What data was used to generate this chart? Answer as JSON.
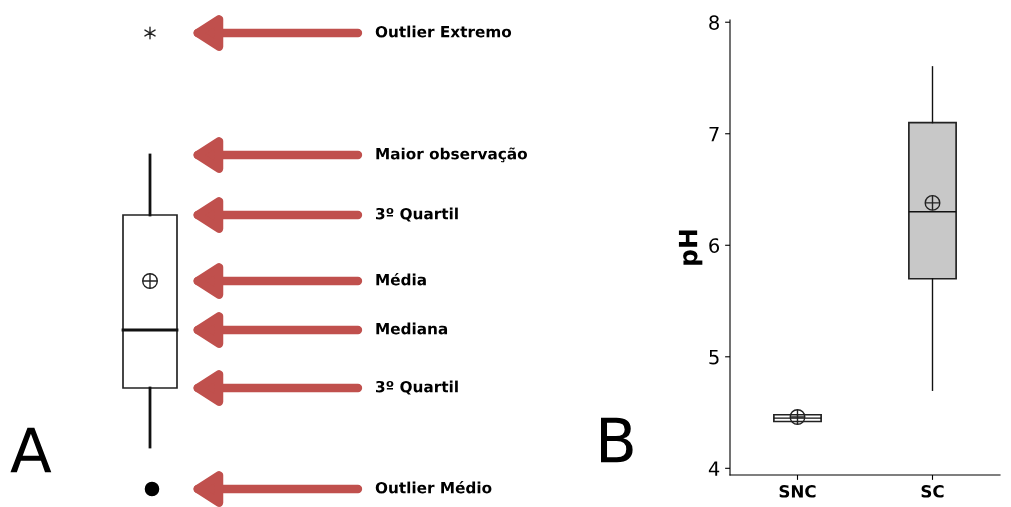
{
  "chart_data": [
    {
      "type": "other",
      "annotations": [
        "Outlier Extremo",
        "Maior observação",
        "3º Quartil",
        "Média",
        "Mediana",
        "3º Quartil",
        "Outlier Médio",
        "A"
      ]
    },
    {
      "type": "box",
      "categories": [
        "SNC",
        "SC"
      ],
      "ylabel": "pH",
      "boxes": [
        {
          "low": 4.42,
          "q1": 4.42,
          "median": 4.45,
          "q3": 4.48,
          "high": 4.48,
          "mean": 4.46
        },
        {
          "low": 4.7,
          "q1": 5.7,
          "median": 6.3,
          "q3": 7.1,
          "high": 7.6,
          "mean": 6.38
        }
      ],
      "colors": [
        "#ffffff",
        "#c8c8c8"
      ],
      "ylim": [
        3.94,
        8.02
      ],
      "yticks": [
        4,
        5,
        6,
        7,
        8
      ],
      "grid": false,
      "annotations": [
        "B"
      ]
    }
  ]
}
